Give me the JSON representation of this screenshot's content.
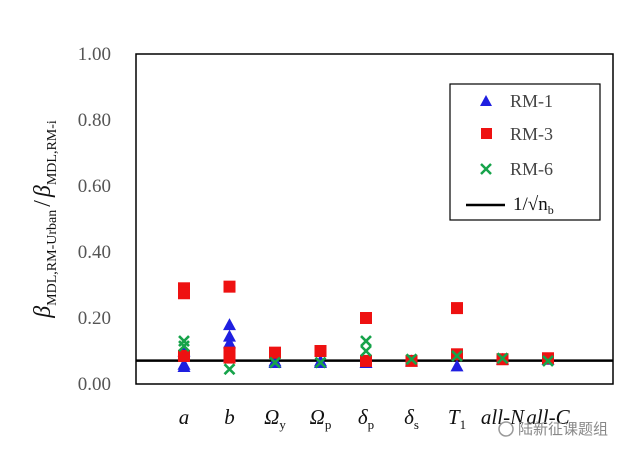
{
  "chart_data": {
    "type": "scatter",
    "ylabel": {
      "main1": "β",
      "sub1": "MDL,RM-Urban",
      "slash": "/",
      "main2": "β",
      "sub2": "MDL,RM-i"
    },
    "ylim": [
      0,
      1
    ],
    "yticks": [
      "0.00",
      "0.20",
      "0.40",
      "0.60",
      "0.80",
      "1.00"
    ],
    "categories": [
      {
        "main": "a",
        "sub": ""
      },
      {
        "main": "b",
        "sub": ""
      },
      {
        "main": "Ω",
        "sub": "y"
      },
      {
        "main": "Ω",
        "sub": "p"
      },
      {
        "main": "δ",
        "sub": "p"
      },
      {
        "main": "δ",
        "sub": "s"
      },
      {
        "main": "T",
        "sub": "1"
      },
      {
        "main": "all-N",
        "sub": ""
      },
      {
        "main": "all-C",
        "sub": ""
      }
    ],
    "series": [
      {
        "name": "RM-1",
        "marker": "triangle",
        "color": "#1f1fe0",
        "points": [
          {
            "cat": 0,
            "y": 0.053
          },
          {
            "cat": 0,
            "y": 0.06
          },
          {
            "cat": 0,
            "y": 0.1
          },
          {
            "cat": 1,
            "y": 0.18
          },
          {
            "cat": 1,
            "y": 0.145
          },
          {
            "cat": 1,
            "y": 0.125
          },
          {
            "cat": 1,
            "y": 0.085
          },
          {
            "cat": 2,
            "y": 0.065
          },
          {
            "cat": 2,
            "y": 0.07
          },
          {
            "cat": 3,
            "y": 0.065
          },
          {
            "cat": 3,
            "y": 0.07
          },
          {
            "cat": 4,
            "y": 0.065
          },
          {
            "cat": 5,
            "y": 0.07
          },
          {
            "cat": 6,
            "y": 0.055
          },
          {
            "cat": 7,
            "y": 0.075
          },
          {
            "cat": 8,
            "y": 0.075
          }
        ]
      },
      {
        "name": "RM-3",
        "marker": "square",
        "color": "#ee1111",
        "points": [
          {
            "cat": 0,
            "y": 0.29
          },
          {
            "cat": 0,
            "y": 0.275
          },
          {
            "cat": 0,
            "y": 0.085
          },
          {
            "cat": 1,
            "y": 0.295
          },
          {
            "cat": 1,
            "y": 0.095
          },
          {
            "cat": 1,
            "y": 0.08
          },
          {
            "cat": 2,
            "y": 0.095
          },
          {
            "cat": 3,
            "y": 0.1
          },
          {
            "cat": 4,
            "y": 0.2
          },
          {
            "cat": 4,
            "y": 0.07
          },
          {
            "cat": 5,
            "y": 0.07
          },
          {
            "cat": 6,
            "y": 0.23
          },
          {
            "cat": 6,
            "y": 0.09
          },
          {
            "cat": 7,
            "y": 0.075
          },
          {
            "cat": 8,
            "y": 0.078
          }
        ]
      },
      {
        "name": "RM-6",
        "marker": "x",
        "color": "#16a34a",
        "points": [
          {
            "cat": 0,
            "y": 0.13
          },
          {
            "cat": 0,
            "y": 0.115
          },
          {
            "cat": 1,
            "y": 0.045
          },
          {
            "cat": 2,
            "y": 0.065
          },
          {
            "cat": 3,
            "y": 0.065
          },
          {
            "cat": 4,
            "y": 0.13
          },
          {
            "cat": 4,
            "y": 0.1
          },
          {
            "cat": 5,
            "y": 0.075
          },
          {
            "cat": 6,
            "y": 0.085
          },
          {
            "cat": 7,
            "y": 0.078
          },
          {
            "cat": 8,
            "y": 0.07
          }
        ]
      }
    ],
    "reference_line": {
      "y": 0.071,
      "label": "1/√n",
      "label_sub": "b",
      "color": "#000000"
    },
    "legend": "top-right"
  },
  "watermark": "陆新征课题组"
}
